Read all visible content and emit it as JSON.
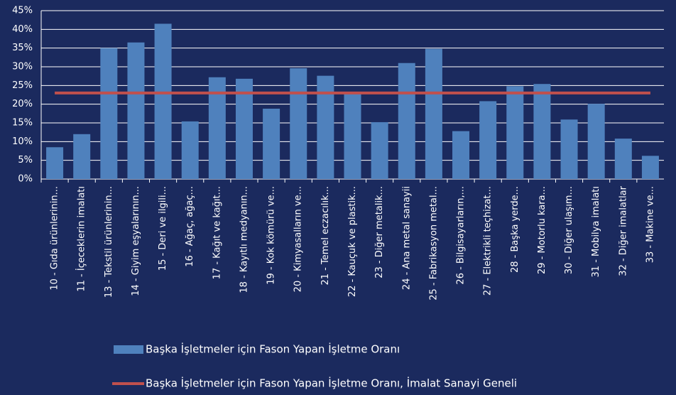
{
  "chart_data": {
    "type": "bar",
    "categories": [
      "10 - Gıda ürünlerinin...",
      "11 - İçeceklerin imalatı",
      "13 - Tekstil ürünlerinin...",
      "14 - Giyim eşyalarının...",
      "15 - Deri ve ilgili...",
      "16 - Ağaç, ağaç...",
      "17 - Kağıt ve kağıt...",
      "18 - Kayıtlı medyanın...",
      "19 - Kok kömürü ve...",
      "20 - Kimyasalların ve...",
      "21 - Temel eczacılık...",
      "22 - Kauçuk ve plastik...",
      "23 - Diğer metalik...",
      "24 - Ana metal sanayii",
      "25 - Fabrikasyon metal...",
      "26 - Bilgisayarların,...",
      "27 - Elektrikli teçhizat...",
      "28 - Başka yerde...",
      "29 - Motorlu kara...",
      "30 - Diğer ulaşım...",
      "31 - Mobilya imalatı",
      "32 - Diğer imalatlar",
      "33 - Makine ve..."
    ],
    "series": [
      {
        "name": "Başka İşletmeler için Fason Yapan İşletme Oranı",
        "color": "#4f81bd",
        "kind": "bar",
        "values": [
          8.5,
          12,
          35,
          36.5,
          41.5,
          15.4,
          27.2,
          26.8,
          18.8,
          29.6,
          27.6,
          23,
          15.2,
          31,
          34.8,
          12.8,
          20.8,
          24.8,
          25.4,
          15.9,
          20.1,
          10.8,
          6.2
        ]
      },
      {
        "name": "Başka İşletmeler için Fason Yapan İşletme Oranı, İmalat Sanayi Geneli",
        "color": "#c0504d",
        "kind": "line",
        "values": [
          23,
          23,
          23,
          23,
          23,
          23,
          23,
          23,
          23,
          23,
          23,
          23,
          23,
          23,
          23,
          23,
          23,
          23,
          23,
          23,
          23,
          23,
          23
        ]
      }
    ],
    "ylim": [
      0,
      45
    ],
    "yticks": [
      {
        "value": 0,
        "label": "0%"
      },
      {
        "value": 5,
        "label": "5%"
      },
      {
        "value": 10,
        "label": "10%"
      },
      {
        "value": 15,
        "label": "15%"
      },
      {
        "value": 20,
        "label": "20%"
      },
      {
        "value": 25,
        "label": "25%"
      },
      {
        "value": 30,
        "label": "30%"
      },
      {
        "value": 35,
        "label": "35%"
      },
      {
        "value": 40,
        "label": "40%"
      },
      {
        "value": 45,
        "label": "45%"
      }
    ],
    "grid": true,
    "legend": "bottom"
  }
}
